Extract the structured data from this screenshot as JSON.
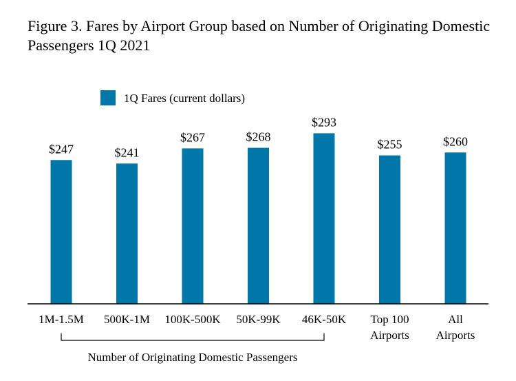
{
  "title": "Figure 3. Fares by Airport Group based on Number of Originating Domestic Passengers 1Q 2021",
  "colors": {
    "bar": "#0077A8",
    "axis": "#000000"
  },
  "chart_data": {
    "type": "bar",
    "title": "Figure 3. Fares by Airport Group based on Number of Originating Domestic Passengers 1Q 2021",
    "xlabel": "",
    "ylabel": "",
    "ylim": [
      0,
      300
    ],
    "grid": false,
    "legend_position": "top-left",
    "categories": [
      [
        "1M-1.5M"
      ],
      [
        "500K-1M"
      ],
      [
        "100K-500K"
      ],
      [
        "50K-99K"
      ],
      [
        "46K-50K"
      ],
      [
        "Top 100",
        "Airports"
      ],
      [
        "All",
        "Airports"
      ]
    ],
    "series": [
      {
        "name": "1Q Fares (current dollars)",
        "values": [
          247,
          241,
          267,
          268,
          293,
          255,
          260
        ],
        "labels": [
          "$247",
          "$241",
          "$267",
          "$268",
          "$293",
          "$255",
          "$260"
        ]
      }
    ],
    "group_annotation": {
      "label": "Number of Originating Domestic Passengers",
      "from_index": 0,
      "to_index": 4
    }
  }
}
